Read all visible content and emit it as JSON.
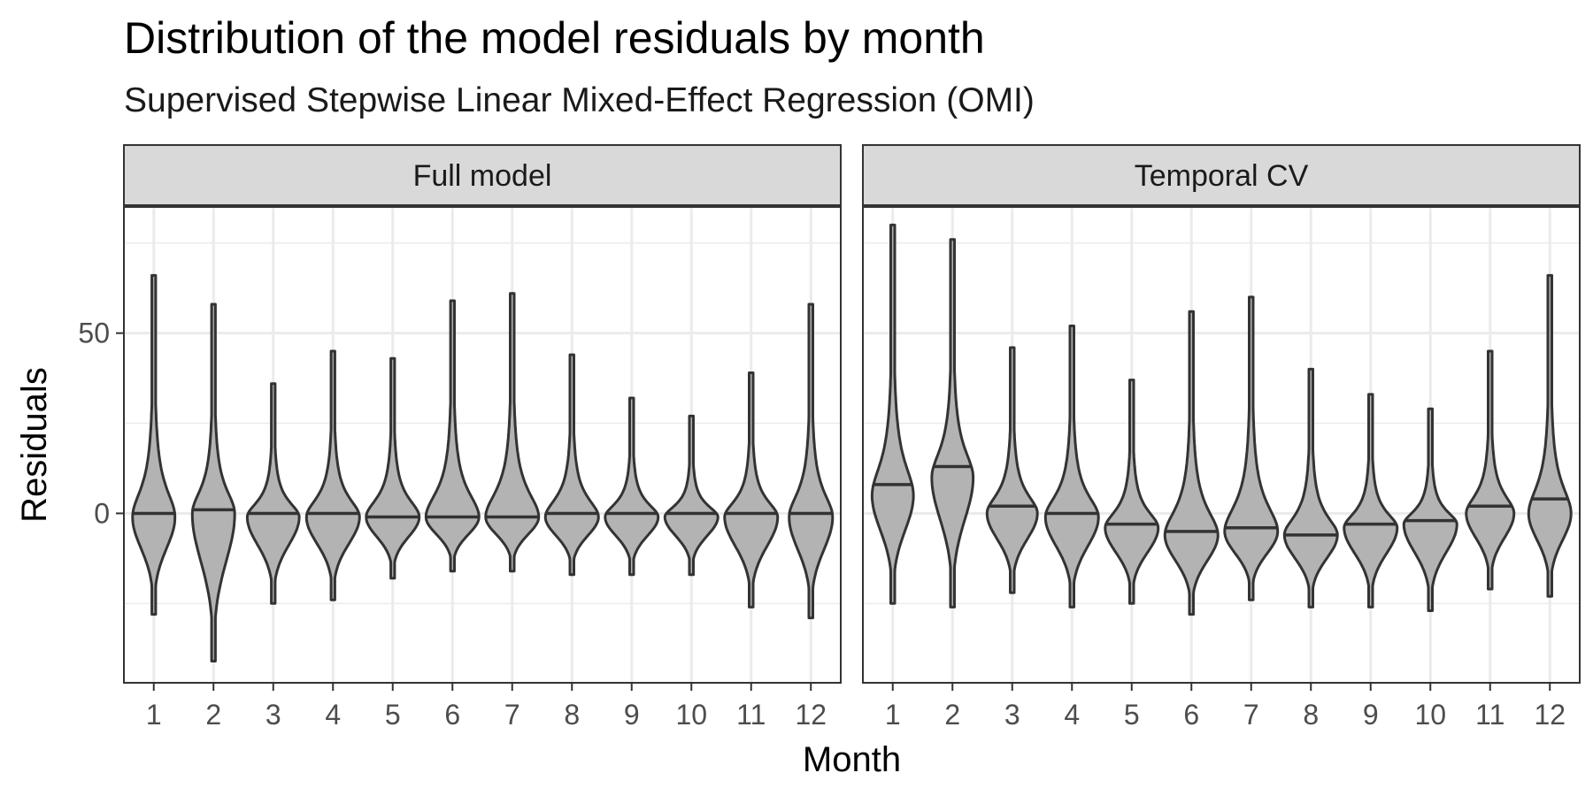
{
  "chart_data": {
    "type": "violin",
    "title": "Distribution of the model residuals by month",
    "subtitle": "Supervised Stepwise Linear Mixed-Effect Regression (OMI)",
    "xlabel": "Month",
    "ylabel": "Residuals",
    "categories": [
      "1",
      "2",
      "3",
      "4",
      "5",
      "6",
      "7",
      "8",
      "9",
      "10",
      "11",
      "12"
    ],
    "yticks": [
      0,
      50
    ],
    "ylim": [
      -47,
      85
    ],
    "grid": true,
    "fill_color": "#b3b3b3",
    "line_color": "#333333",
    "panels": [
      {
        "name": "Full model",
        "violins": [
          {
            "month": "1",
            "min": -28,
            "max": 66,
            "median": 0,
            "center": -1,
            "width": 0.8
          },
          {
            "month": "2",
            "min": -41,
            "max": 58,
            "median": 1,
            "center": 0,
            "width": 0.8
          },
          {
            "month": "3",
            "min": -25,
            "max": 36,
            "median": 0,
            "center": -1,
            "width": 0.98
          },
          {
            "month": "4",
            "min": -24,
            "max": 45,
            "median": 0,
            "center": -1,
            "width": 1.0
          },
          {
            "month": "5",
            "min": -18,
            "max": 43,
            "median": -1,
            "center": -1,
            "width": 1.0
          },
          {
            "month": "6",
            "min": -16,
            "max": 59,
            "median": -1,
            "center": -1,
            "width": 1.0
          },
          {
            "month": "7",
            "min": -16,
            "max": 61,
            "median": -1,
            "center": -1,
            "width": 1.0
          },
          {
            "month": "8",
            "min": -17,
            "max": 44,
            "median": 0,
            "center": -1,
            "width": 1.0
          },
          {
            "month": "9",
            "min": -17,
            "max": 32,
            "median": 0,
            "center": -1,
            "width": 1.0
          },
          {
            "month": "10",
            "min": -17,
            "max": 27,
            "median": 0,
            "center": -1,
            "width": 1.0
          },
          {
            "month": "11",
            "min": -26,
            "max": 39,
            "median": 0,
            "center": -1,
            "width": 1.0
          },
          {
            "month": "12",
            "min": -29,
            "max": 58,
            "median": 0,
            "center": -1,
            "width": 0.82
          }
        ]
      },
      {
        "name": "Temporal CV",
        "violins": [
          {
            "month": "1",
            "min": -25,
            "max": 80,
            "median": 8,
            "center": 5,
            "width": 0.78
          },
          {
            "month": "2",
            "min": -26,
            "max": 76,
            "median": 13,
            "center": 10,
            "width": 0.78
          },
          {
            "month": "3",
            "min": -22,
            "max": 46,
            "median": 2,
            "center": 0,
            "width": 0.95
          },
          {
            "month": "4",
            "min": -26,
            "max": 52,
            "median": 0,
            "center": -1,
            "width": 1.0
          },
          {
            "month": "5",
            "min": -25,
            "max": 37,
            "median": -3,
            "center": -4,
            "width": 1.0
          },
          {
            "month": "6",
            "min": -28,
            "max": 56,
            "median": -5,
            "center": -6,
            "width": 1.0
          },
          {
            "month": "7",
            "min": -24,
            "max": 60,
            "median": -4,
            "center": -5,
            "width": 1.0
          },
          {
            "month": "8",
            "min": -26,
            "max": 40,
            "median": -6,
            "center": -6,
            "width": 1.0
          },
          {
            "month": "9",
            "min": -26,
            "max": 33,
            "median": -3,
            "center": -4,
            "width": 1.0
          },
          {
            "month": "10",
            "min": -27,
            "max": 29,
            "median": -2,
            "center": -3,
            "width": 1.0
          },
          {
            "month": "11",
            "min": -21,
            "max": 45,
            "median": 2,
            "center": 0,
            "width": 0.9
          },
          {
            "month": "12",
            "min": -23,
            "max": 66,
            "median": 4,
            "center": 0,
            "width": 0.8
          }
        ]
      }
    ]
  }
}
